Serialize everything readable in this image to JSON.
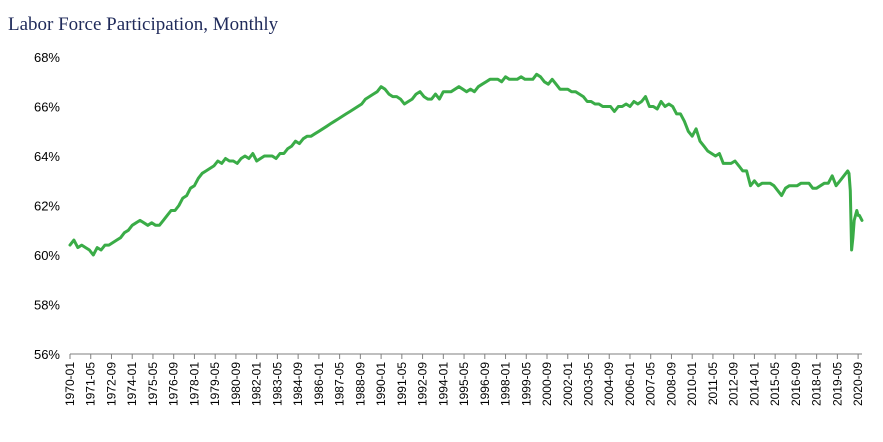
{
  "chart_data": {
    "type": "line",
    "title": "Labor Force Participation, Monthly",
    "xlabel": "",
    "ylabel": "",
    "ylim": [
      56,
      68
    ],
    "yticks": [
      56,
      58,
      60,
      62,
      64,
      66,
      68
    ],
    "ytick_labels": [
      "56%",
      "58%",
      "60%",
      "62%",
      "64%",
      "66%",
      "68%"
    ],
    "grid": false,
    "legend": "none",
    "line_color": "#3aac47",
    "x_start": "1970-01",
    "x_end": "2020-12",
    "xtick_labels": [
      "1970-01",
      "1971-05",
      "1972-09",
      "1974-01",
      "1975-05",
      "1976-09",
      "1978-01",
      "1979-05",
      "1980-09",
      "1982-01",
      "1983-05",
      "1984-09",
      "1986-01",
      "1987-05",
      "1988-09",
      "1990-01",
      "1991-05",
      "1992-09",
      "1994-01",
      "1995-05",
      "1996-09",
      "1998-01",
      "1999-05",
      "2000-09",
      "2002-01",
      "2003-05",
      "2004-09",
      "2006-01",
      "2007-05",
      "2008-09",
      "2010-01",
      "2011-05",
      "2012-09",
      "2014-01",
      "2015-05",
      "2016-09",
      "2018-01",
      "2019-05",
      "2020-09"
    ],
    "series": [
      {
        "values": [
          [
            "1970-01",
            60.4
          ],
          [
            "1970-04",
            60.6
          ],
          [
            "1970-07",
            60.3
          ],
          [
            "1970-10",
            60.4
          ],
          [
            "1971-01",
            60.3
          ],
          [
            "1971-04",
            60.2
          ],
          [
            "1971-07",
            60.0
          ],
          [
            "1971-10",
            60.3
          ],
          [
            "1972-01",
            60.2
          ],
          [
            "1972-04",
            60.4
          ],
          [
            "1972-07",
            60.4
          ],
          [
            "1972-10",
            60.5
          ],
          [
            "1973-01",
            60.6
          ],
          [
            "1973-04",
            60.7
          ],
          [
            "1973-07",
            60.9
          ],
          [
            "1973-10",
            61.0
          ],
          [
            "1974-01",
            61.2
          ],
          [
            "1974-04",
            61.3
          ],
          [
            "1974-07",
            61.4
          ],
          [
            "1974-10",
            61.3
          ],
          [
            "1975-01",
            61.2
          ],
          [
            "1975-04",
            61.3
          ],
          [
            "1975-07",
            61.2
          ],
          [
            "1975-10",
            61.2
          ],
          [
            "1976-01",
            61.4
          ],
          [
            "1976-04",
            61.6
          ],
          [
            "1976-07",
            61.8
          ],
          [
            "1976-10",
            61.8
          ],
          [
            "1977-01",
            62.0
          ],
          [
            "1977-04",
            62.3
          ],
          [
            "1977-07",
            62.4
          ],
          [
            "1977-10",
            62.7
          ],
          [
            "1978-01",
            62.8
          ],
          [
            "1978-04",
            63.1
          ],
          [
            "1978-07",
            63.3
          ],
          [
            "1978-10",
            63.4
          ],
          [
            "1979-01",
            63.5
          ],
          [
            "1979-04",
            63.6
          ],
          [
            "1979-07",
            63.8
          ],
          [
            "1979-10",
            63.7
          ],
          [
            "1980-01",
            63.9
          ],
          [
            "1980-04",
            63.8
          ],
          [
            "1980-07",
            63.8
          ],
          [
            "1980-10",
            63.7
          ],
          [
            "1981-01",
            63.9
          ],
          [
            "1981-04",
            64.0
          ],
          [
            "1981-07",
            63.9
          ],
          [
            "1981-10",
            64.1
          ],
          [
            "1982-01",
            63.8
          ],
          [
            "1982-04",
            63.9
          ],
          [
            "1982-07",
            64.0
          ],
          [
            "1982-10",
            64.0
          ],
          [
            "1983-01",
            64.0
          ],
          [
            "1983-04",
            63.9
          ],
          [
            "1983-07",
            64.1
          ],
          [
            "1983-10",
            64.1
          ],
          [
            "1984-01",
            64.3
          ],
          [
            "1984-04",
            64.4
          ],
          [
            "1984-07",
            64.6
          ],
          [
            "1984-10",
            64.5
          ],
          [
            "1985-01",
            64.7
          ],
          [
            "1985-04",
            64.8
          ],
          [
            "1985-07",
            64.8
          ],
          [
            "1985-10",
            64.9
          ],
          [
            "1986-01",
            65.0
          ],
          [
            "1986-04",
            65.1
          ],
          [
            "1986-07",
            65.2
          ],
          [
            "1986-10",
            65.3
          ],
          [
            "1987-01",
            65.4
          ],
          [
            "1987-04",
            65.5
          ],
          [
            "1987-07",
            65.6
          ],
          [
            "1987-10",
            65.7
          ],
          [
            "1988-01",
            65.8
          ],
          [
            "1988-04",
            65.9
          ],
          [
            "1988-07",
            66.0
          ],
          [
            "1988-10",
            66.1
          ],
          [
            "1989-01",
            66.3
          ],
          [
            "1989-04",
            66.4
          ],
          [
            "1989-07",
            66.5
          ],
          [
            "1989-10",
            66.6
          ],
          [
            "1990-01",
            66.8
          ],
          [
            "1990-04",
            66.7
          ],
          [
            "1990-07",
            66.5
          ],
          [
            "1990-10",
            66.4
          ],
          [
            "1991-01",
            66.4
          ],
          [
            "1991-04",
            66.3
          ],
          [
            "1991-07",
            66.1
          ],
          [
            "1991-10",
            66.2
          ],
          [
            "1992-01",
            66.3
          ],
          [
            "1992-04",
            66.5
          ],
          [
            "1992-07",
            66.6
          ],
          [
            "1992-10",
            66.4
          ],
          [
            "1993-01",
            66.3
          ],
          [
            "1993-04",
            66.3
          ],
          [
            "1993-07",
            66.5
          ],
          [
            "1993-10",
            66.3
          ],
          [
            "1994-01",
            66.6
          ],
          [
            "1994-04",
            66.6
          ],
          [
            "1994-07",
            66.6
          ],
          [
            "1994-10",
            66.7
          ],
          [
            "1995-01",
            66.8
          ],
          [
            "1995-04",
            66.7
          ],
          [
            "1995-07",
            66.6
          ],
          [
            "1995-10",
            66.7
          ],
          [
            "1996-01",
            66.6
          ],
          [
            "1996-04",
            66.8
          ],
          [
            "1996-07",
            66.9
          ],
          [
            "1996-10",
            67.0
          ],
          [
            "1997-01",
            67.1
          ],
          [
            "1997-04",
            67.1
          ],
          [
            "1997-07",
            67.1
          ],
          [
            "1997-10",
            67.0
          ],
          [
            "1998-01",
            67.2
          ],
          [
            "1998-04",
            67.1
          ],
          [
            "1998-07",
            67.1
          ],
          [
            "1998-10",
            67.1
          ],
          [
            "1999-01",
            67.2
          ],
          [
            "1999-04",
            67.1
          ],
          [
            "1999-07",
            67.1
          ],
          [
            "1999-10",
            67.1
          ],
          [
            "2000-01",
            67.3
          ],
          [
            "2000-04",
            67.2
          ],
          [
            "2000-07",
            67.0
          ],
          [
            "2000-10",
            66.9
          ],
          [
            "2001-01",
            67.1
          ],
          [
            "2001-04",
            66.9
          ],
          [
            "2001-07",
            66.7
          ],
          [
            "2001-10",
            66.7
          ],
          [
            "2002-01",
            66.7
          ],
          [
            "2002-04",
            66.6
          ],
          [
            "2002-07",
            66.6
          ],
          [
            "2002-10",
            66.5
          ],
          [
            "2003-01",
            66.4
          ],
          [
            "2003-04",
            66.2
          ],
          [
            "2003-07",
            66.2
          ],
          [
            "2003-10",
            66.1
          ],
          [
            "2004-01",
            66.1
          ],
          [
            "2004-04",
            66.0
          ],
          [
            "2004-07",
            66.0
          ],
          [
            "2004-10",
            66.0
          ],
          [
            "2005-01",
            65.8
          ],
          [
            "2005-04",
            66.0
          ],
          [
            "2005-07",
            66.0
          ],
          [
            "2005-10",
            66.1
          ],
          [
            "2006-01",
            66.0
          ],
          [
            "2006-04",
            66.2
          ],
          [
            "2006-07",
            66.1
          ],
          [
            "2006-10",
            66.2
          ],
          [
            "2007-01",
            66.4
          ],
          [
            "2007-04",
            66.0
          ],
          [
            "2007-07",
            66.0
          ],
          [
            "2007-10",
            65.9
          ],
          [
            "2008-01",
            66.2
          ],
          [
            "2008-04",
            66.0
          ],
          [
            "2008-07",
            66.1
          ],
          [
            "2008-10",
            66.0
          ],
          [
            "2009-01",
            65.7
          ],
          [
            "2009-04",
            65.7
          ],
          [
            "2009-07",
            65.4
          ],
          [
            "2009-10",
            65.0
          ],
          [
            "2010-01",
            64.8
          ],
          [
            "2010-04",
            65.1
          ],
          [
            "2010-07",
            64.6
          ],
          [
            "2010-10",
            64.4
          ],
          [
            "2011-01",
            64.2
          ],
          [
            "2011-04",
            64.1
          ],
          [
            "2011-07",
            64.0
          ],
          [
            "2011-10",
            64.1
          ],
          [
            "2012-01",
            63.7
          ],
          [
            "2012-04",
            63.7
          ],
          [
            "2012-07",
            63.7
          ],
          [
            "2012-10",
            63.8
          ],
          [
            "2013-01",
            63.6
          ],
          [
            "2013-04",
            63.4
          ],
          [
            "2013-07",
            63.4
          ],
          [
            "2013-10",
            62.8
          ],
          [
            "2014-01",
            63.0
          ],
          [
            "2014-04",
            62.8
          ],
          [
            "2014-07",
            62.9
          ],
          [
            "2014-10",
            62.9
          ],
          [
            "2015-01",
            62.9
          ],
          [
            "2015-04",
            62.8
          ],
          [
            "2015-07",
            62.6
          ],
          [
            "2015-10",
            62.4
          ],
          [
            "2016-01",
            62.7
          ],
          [
            "2016-04",
            62.8
          ],
          [
            "2016-07",
            62.8
          ],
          [
            "2016-10",
            62.8
          ],
          [
            "2017-01",
            62.9
          ],
          [
            "2017-04",
            62.9
          ],
          [
            "2017-07",
            62.9
          ],
          [
            "2017-10",
            62.7
          ],
          [
            "2018-01",
            62.7
          ],
          [
            "2018-04",
            62.8
          ],
          [
            "2018-07",
            62.9
          ],
          [
            "2018-10",
            62.9
          ],
          [
            "2019-01",
            63.2
          ],
          [
            "2019-04",
            62.8
          ],
          [
            "2019-07",
            63.0
          ],
          [
            "2019-10",
            63.2
          ],
          [
            "2020-01",
            63.4
          ],
          [
            "2020-02",
            63.3
          ],
          [
            "2020-03",
            62.6
          ],
          [
            "2020-04",
            60.2
          ],
          [
            "2020-05",
            60.7
          ],
          [
            "2020-06",
            61.4
          ],
          [
            "2020-07",
            61.6
          ],
          [
            "2020-08",
            61.8
          ],
          [
            "2020-09",
            61.6
          ],
          [
            "2020-10",
            61.6
          ],
          [
            "2020-11",
            61.5
          ],
          [
            "2020-12",
            61.4
          ]
        ]
      }
    ]
  }
}
